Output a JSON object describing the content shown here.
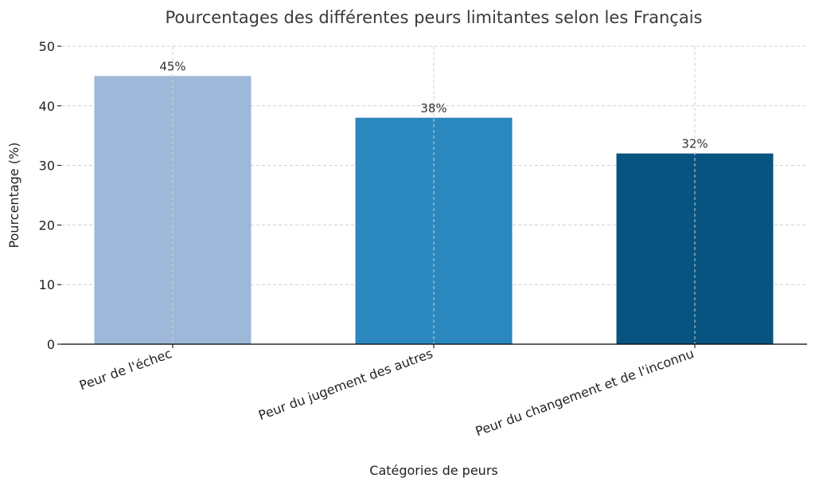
{
  "chart_data": {
    "type": "bar",
    "title": "Pourcentages des différentes peurs limitantes selon les Français",
    "xlabel": "Catégories de peurs",
    "ylabel": "Pourcentage (%)",
    "categories": [
      "Peur de l'échec",
      "Peur du jugement des autres",
      "Peur du changement et de l'inconnu"
    ],
    "values": [
      45,
      38,
      32
    ],
    "data_labels": [
      "45%",
      "38%",
      "32%"
    ],
    "colors": [
      "#9db8d8",
      "#2b88bf",
      "#06547f"
    ],
    "ylim": [
      0,
      50
    ],
    "yticks": [
      0,
      10,
      20,
      30,
      40,
      50
    ],
    "grid": true
  }
}
